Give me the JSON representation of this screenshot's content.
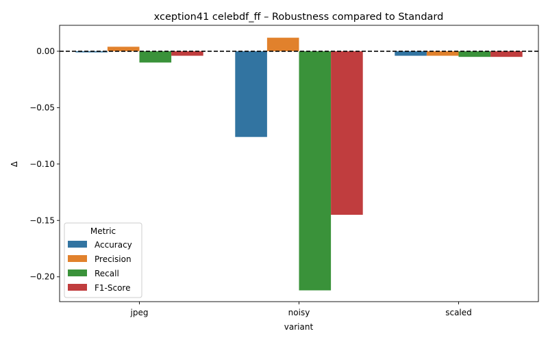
{
  "chart_data": {
    "type": "bar",
    "title": "xception41 celebdf_ff – Robustness compared to Standard",
    "xlabel": "variant",
    "ylabel": "Δ",
    "categories": [
      "jpeg",
      "noisy",
      "scaled"
    ],
    "ylim": [
      -0.222,
      0.023
    ],
    "yticks": [
      0.0,
      -0.05,
      -0.1,
      -0.15,
      -0.2
    ],
    "ytick_labels": [
      "0.00",
      "−0.05",
      "−0.10",
      "−0.15",
      "−0.20"
    ],
    "reference_line": 0.0,
    "grid": false,
    "legend": {
      "title": "Metric",
      "position": "lower-left"
    },
    "series": [
      {
        "name": "Accuracy",
        "color": "#3274a1",
        "values": [
          -0.001,
          -0.076,
          -0.004
        ]
      },
      {
        "name": "Precision",
        "color": "#e1812c",
        "values": [
          0.004,
          0.012,
          -0.004
        ]
      },
      {
        "name": "Recall",
        "color": "#3a923a",
        "values": [
          -0.01,
          -0.212,
          -0.005
        ]
      },
      {
        "name": "F1-Score",
        "color": "#c03d3e",
        "values": [
          -0.004,
          -0.145,
          -0.005
        ]
      }
    ]
  }
}
